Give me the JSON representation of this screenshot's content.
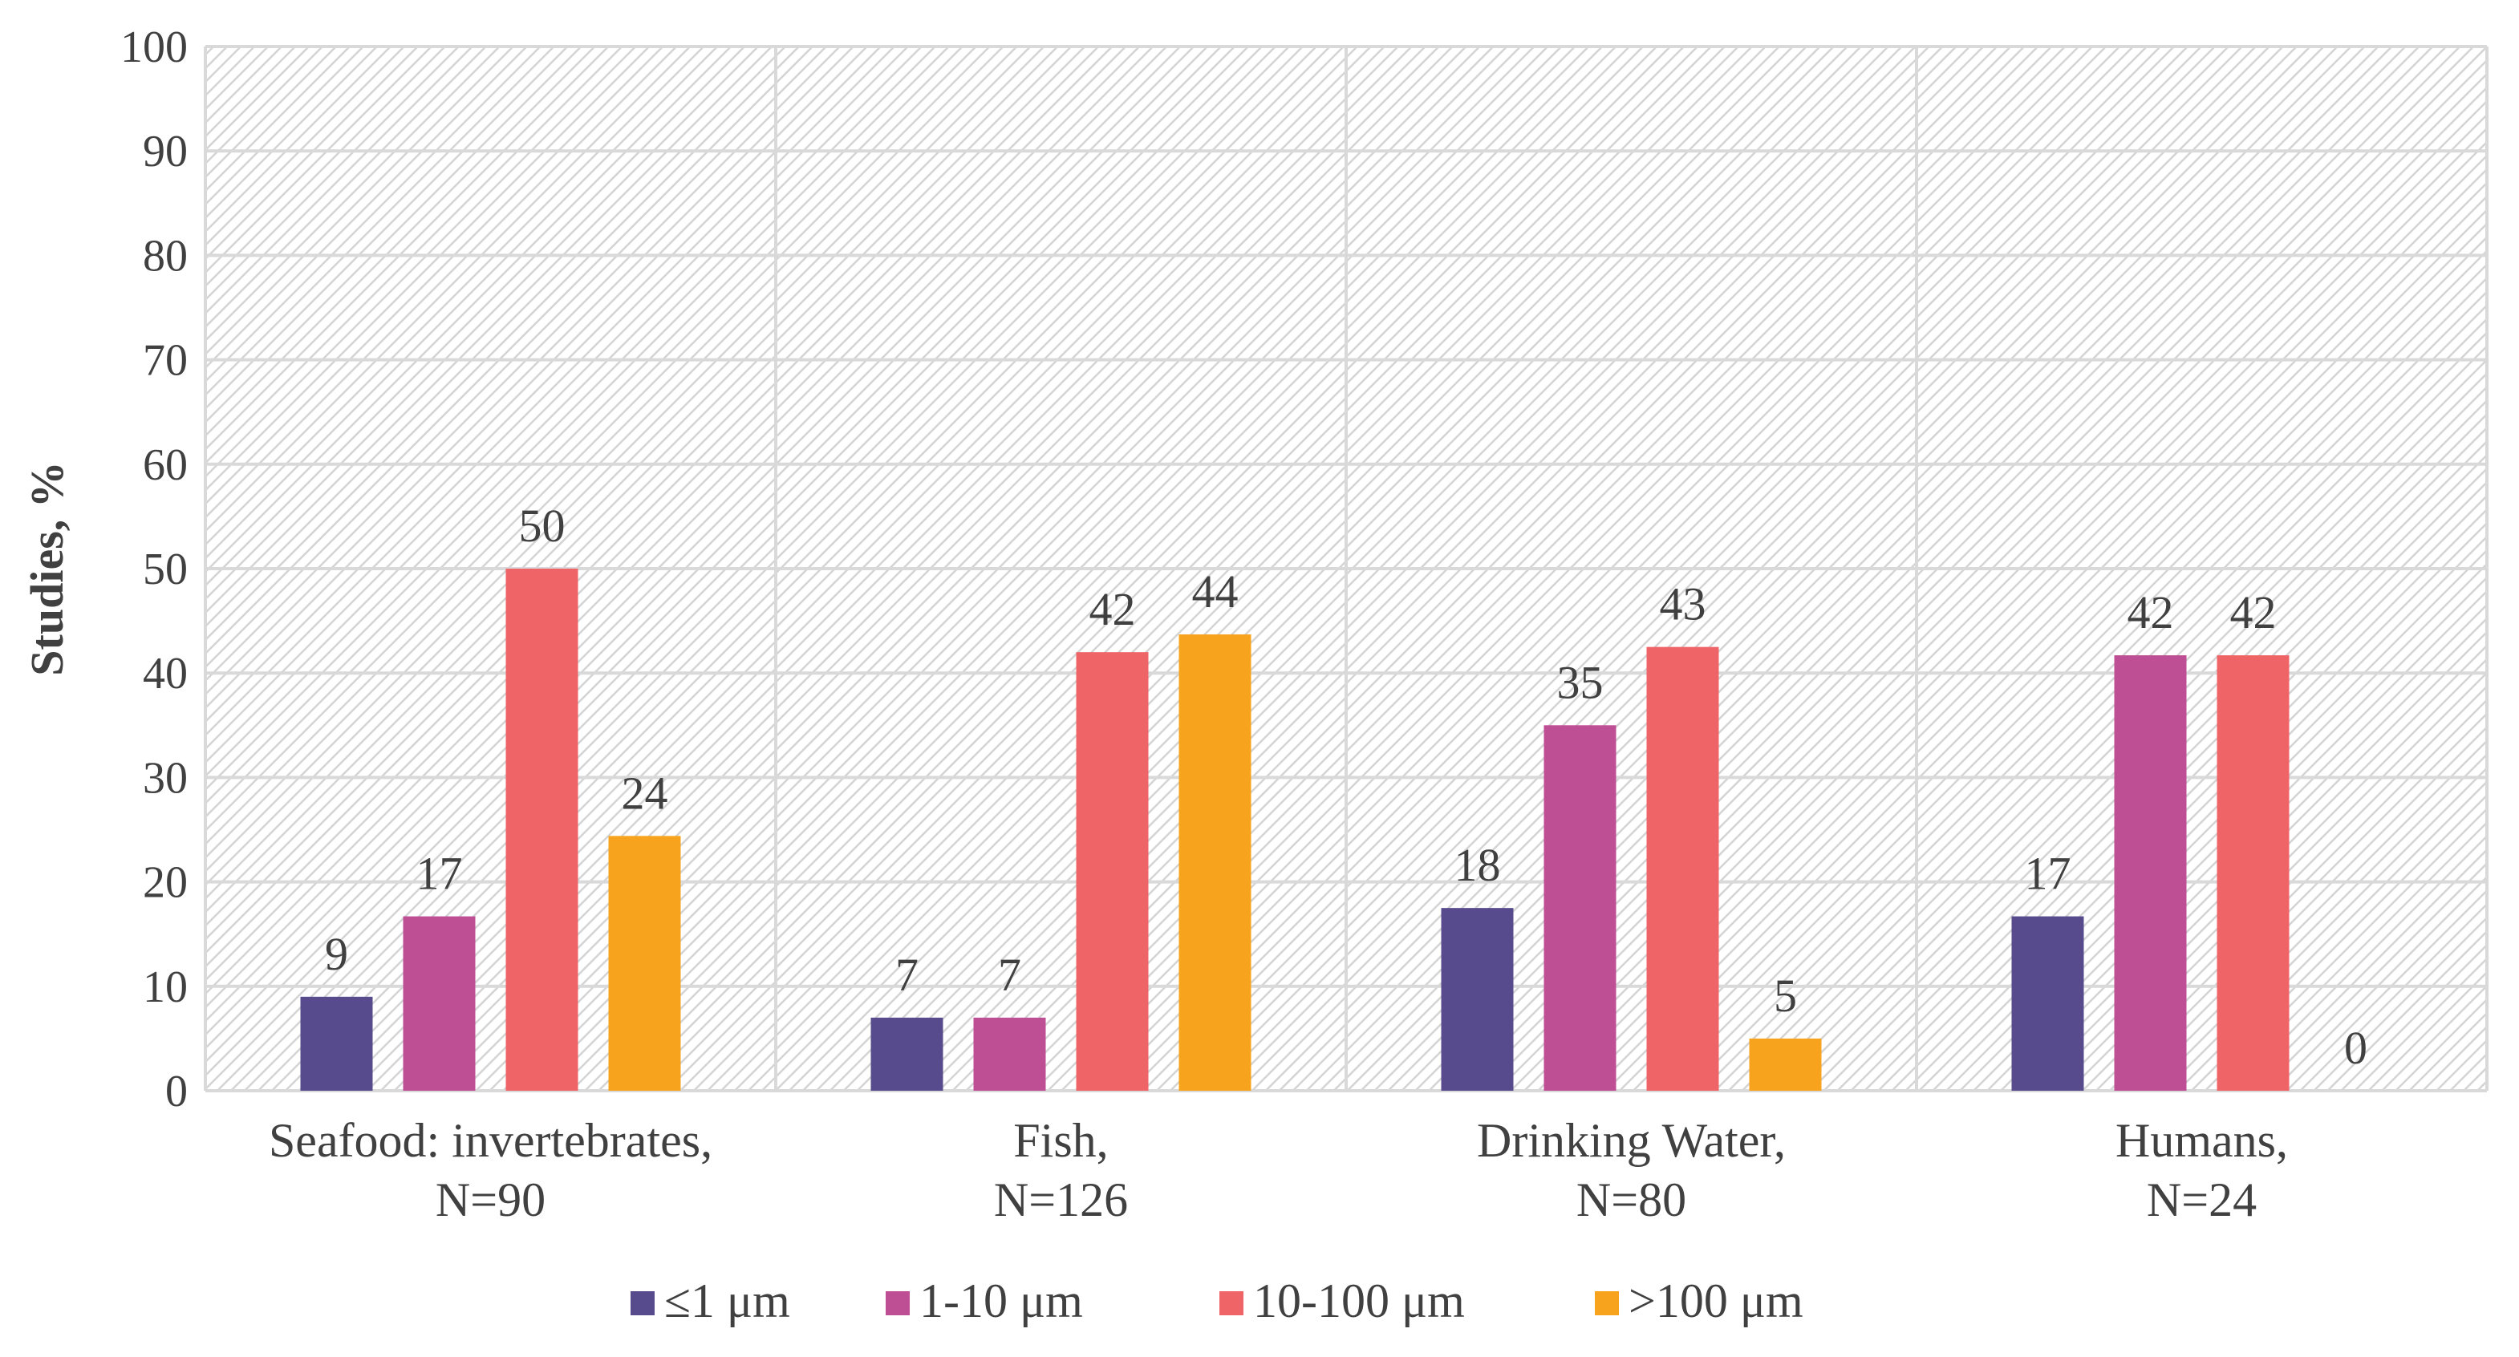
{
  "chart_data": {
    "type": "bar",
    "title": "",
    "xlabel": "",
    "ylabel": "Studies, %",
    "ylim": [
      0,
      100
    ],
    "yticks": [
      "0",
      "10",
      "20",
      "30",
      "40",
      "50",
      "60",
      "70",
      "80",
      "90",
      "100"
    ],
    "categories": [
      [
        "Seafood: invertebrates,",
        "N=90"
      ],
      [
        "Fish,",
        "N=126"
      ],
      [
        "Drinking Water,",
        "N=80"
      ],
      [
        "Humans,",
        "N=24"
      ]
    ],
    "series": [
      {
        "name": "≤1 μm",
        "color": "#574B8E",
        "values": [
          9,
          7,
          17.5,
          16.7
        ],
        "labels": [
          "9",
          "7",
          "18",
          "17"
        ]
      },
      {
        "name": "1-10 μm",
        "color": "#BE4F94",
        "values": [
          16.7,
          7,
          35,
          41.7
        ],
        "labels": [
          "17",
          "7",
          "35",
          "42"
        ]
      },
      {
        "name": "10-100 μm",
        "color": "#EF6467",
        "values": [
          50,
          42,
          42.5,
          41.7
        ],
        "labels": [
          "50",
          "42",
          "43",
          "42"
        ]
      },
      {
        "name": ">100 μm",
        "color": "#F7A31E",
        "values": [
          24.4,
          43.7,
          5,
          0
        ],
        "labels": [
          "24",
          "44",
          "5",
          "0"
        ]
      }
    ],
    "grid": true,
    "legend_position": "bottom"
  }
}
